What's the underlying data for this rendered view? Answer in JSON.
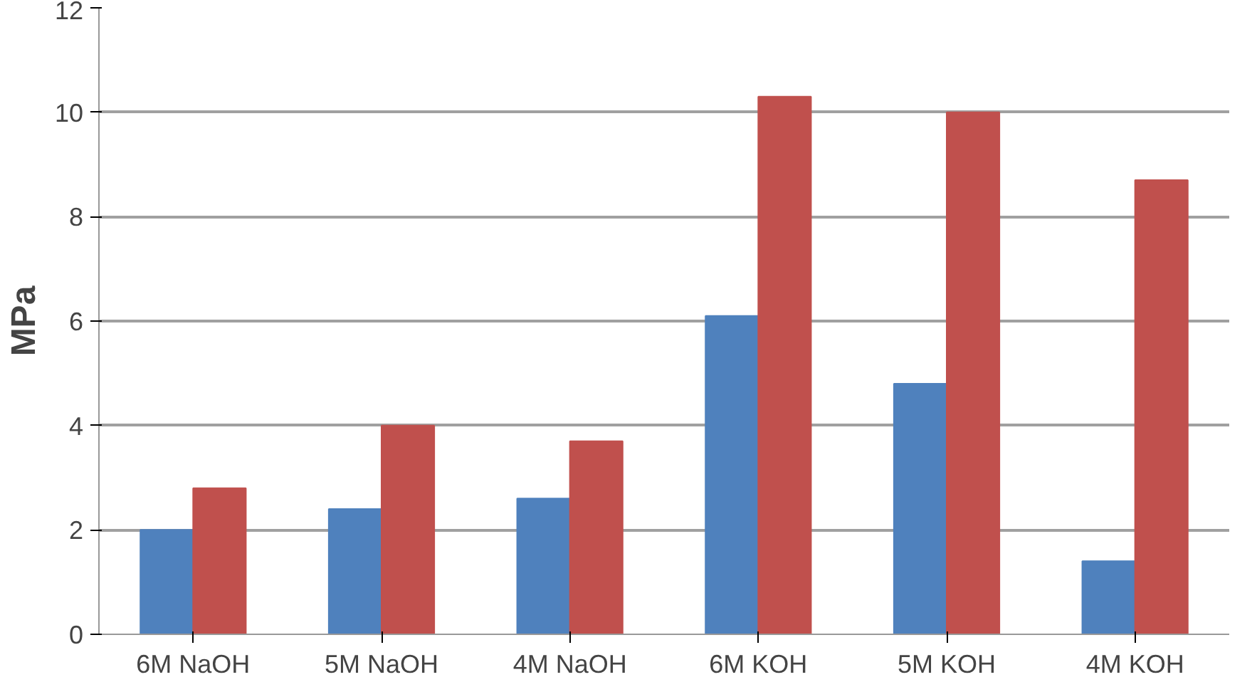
{
  "chart_data": {
    "type": "bar",
    "ylabel": "MPa",
    "categories": [
      "6M NaOH",
      "5M NaOH",
      "4M NaOH",
      "6M KOH",
      "5M KOH",
      "4M KOH"
    ],
    "series": [
      {
        "color": "#4f81bd",
        "values": [
          2.0,
          2.4,
          2.6,
          6.1,
          4.8,
          1.4
        ]
      },
      {
        "color": "#c0504d",
        "values": [
          2.8,
          4.0,
          3.7,
          10.3,
          10.0,
          8.7
        ]
      }
    ],
    "ylim": [
      0,
      12
    ],
    "yticks": [
      0,
      2,
      4,
      6,
      8,
      10,
      12
    ],
    "grid": "y"
  }
}
